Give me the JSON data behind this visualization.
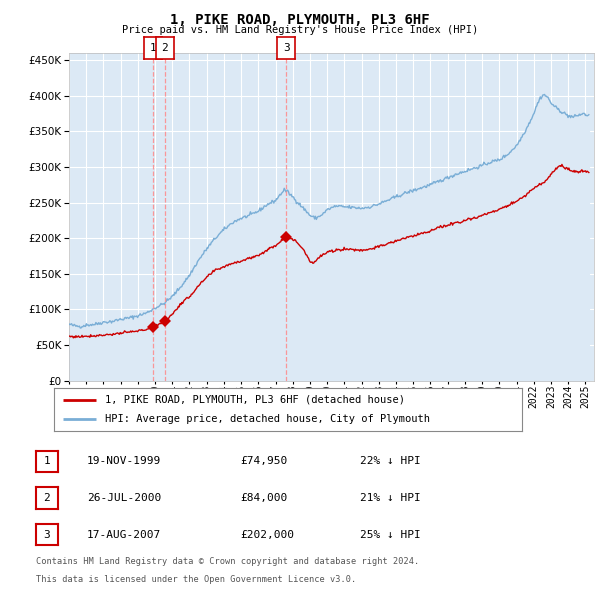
{
  "title": "1, PIKE ROAD, PLYMOUTH, PL3 6HF",
  "subtitle": "Price paid vs. HM Land Registry's House Price Index (HPI)",
  "legend_red": "1, PIKE ROAD, PLYMOUTH, PL3 6HF (detached house)",
  "legend_blue": "HPI: Average price, detached house, City of Plymouth",
  "transactions": [
    {
      "num": 1,
      "date": "19-NOV-1999",
      "price": 74950,
      "hpi_diff": "22% ↓ HPI",
      "x": 1999.88
    },
    {
      "num": 2,
      "date": "26-JUL-2000",
      "price": 84000,
      "hpi_diff": "21% ↓ HPI",
      "x": 2000.56
    },
    {
      "num": 3,
      "date": "17-AUG-2007",
      "price": 202000,
      "hpi_diff": "25% ↓ HPI",
      "x": 2007.63
    }
  ],
  "footnote1": "Contains HM Land Registry data © Crown copyright and database right 2024.",
  "footnote2": "This data is licensed under the Open Government Licence v3.0.",
  "ylim": [
    0,
    460000
  ],
  "xlim_start": 1995.0,
  "xlim_end": 2025.5,
  "fig_bg": "#ffffff",
  "plot_bg": "#dce9f5",
  "grid_color": "#ffffff",
  "red_color": "#cc0000",
  "blue_color": "#7aaed6",
  "blue_fill": "#dce9f5",
  "dashed_color": "#ff8888"
}
